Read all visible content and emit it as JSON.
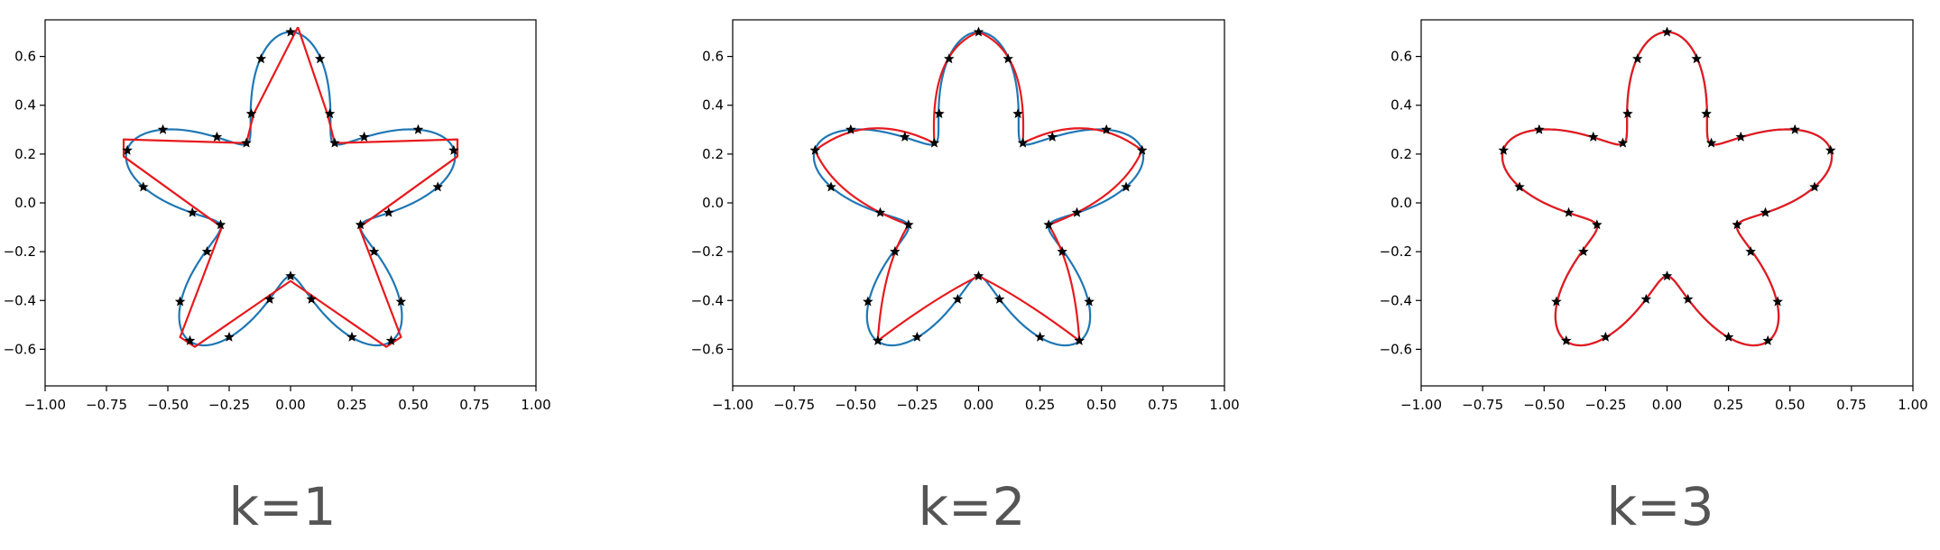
{
  "colors": {
    "true_curve": "#1f77b4",
    "spline_fit": "#e8191d",
    "markers": "#000000",
    "frame": "#000000",
    "caption": "#555555"
  },
  "chart_data": [
    {
      "type": "line",
      "caption": "k=1",
      "spline_degree": 1,
      "xlim": [
        -1.0,
        1.0
      ],
      "ylim": [
        -0.75,
        0.75
      ],
      "xticks": [
        -1.0,
        -0.75,
        -0.5,
        -0.25,
        0.0,
        0.25,
        0.5,
        0.75,
        1.0
      ],
      "xtick_labels": [
        "−1.00",
        "−0.75",
        "−0.50",
        "−0.25",
        "0.00",
        "0.25",
        "0.50",
        "0.75",
        "1.00"
      ],
      "yticks": [
        -0.6,
        -0.4,
        -0.2,
        0.0,
        0.2,
        0.4,
        0.6
      ],
      "ytick_labels": [
        "−0.6",
        "−0.4",
        "−0.2",
        "0.0",
        "0.2",
        "0.4",
        "0.6"
      ],
      "grid": false,
      "legend": "none",
      "curve": {
        "kind": "five-lobed star",
        "r_mean": 0.5,
        "r_amplitude": 0.2,
        "lobes": 5
      },
      "markers": [
        [
          0.0,
          0.7
        ],
        [
          -0.12,
          0.59
        ],
        [
          -0.16,
          0.365
        ],
        [
          -0.18,
          0.245
        ],
        [
          -0.3,
          0.27
        ],
        [
          -0.52,
          0.3
        ],
        [
          -0.665,
          0.215
        ],
        [
          -0.6,
          0.065
        ],
        [
          -0.4,
          -0.04
        ],
        [
          -0.285,
          -0.09
        ],
        [
          -0.34,
          -0.2
        ],
        [
          -0.45,
          -0.405
        ],
        [
          -0.41,
          -0.565
        ],
        [
          -0.25,
          -0.55
        ],
        [
          -0.085,
          -0.395
        ],
        [
          0.0,
          -0.3
        ],
        [
          0.085,
          -0.395
        ],
        [
          0.25,
          -0.55
        ],
        [
          0.41,
          -0.565
        ],
        [
          0.45,
          -0.405
        ],
        [
          0.34,
          -0.2
        ],
        [
          0.285,
          -0.09
        ],
        [
          0.4,
          -0.04
        ],
        [
          0.6,
          0.065
        ],
        [
          0.665,
          0.215
        ],
        [
          0.52,
          0.3
        ],
        [
          0.3,
          0.27
        ],
        [
          0.18,
          0.245
        ],
        [
          0.16,
          0.365
        ],
        [
          0.12,
          0.59
        ]
      ],
      "fit": [
        [
          0.03,
          0.72
        ],
        [
          -0.15,
          0.365
        ],
        [
          -0.18,
          0.245
        ],
        [
          -0.68,
          0.26
        ],
        [
          -0.68,
          0.19
        ],
        [
          -0.28,
          -0.1
        ],
        [
          -0.45,
          -0.55
        ],
        [
          -0.39,
          -0.59
        ],
        [
          0.0,
          -0.32
        ],
        [
          0.39,
          -0.59
        ],
        [
          0.45,
          -0.55
        ],
        [
          0.28,
          -0.1
        ],
        [
          0.68,
          0.19
        ],
        [
          0.68,
          0.26
        ],
        [
          0.18,
          0.245
        ],
        [
          0.15,
          0.365
        ],
        [
          0.03,
          0.72
        ]
      ]
    },
    {
      "type": "line",
      "caption": "k=2",
      "spline_degree": 2,
      "xlim": [
        -1.0,
        1.0
      ],
      "ylim": [
        -0.75,
        0.75
      ],
      "xticks": [
        -1.0,
        -0.75,
        -0.5,
        -0.25,
        0.0,
        0.25,
        0.5,
        0.75,
        1.0
      ],
      "xtick_labels": [
        "−1.00",
        "−0.75",
        "−0.50",
        "−0.25",
        "0.00",
        "0.25",
        "0.50",
        "0.75",
        "1.00"
      ],
      "yticks": [
        -0.6,
        -0.4,
        -0.2,
        0.0,
        0.2,
        0.4,
        0.6
      ],
      "ytick_labels": [
        "−0.6",
        "−0.4",
        "−0.2",
        "0.0",
        "0.2",
        "0.4",
        "0.6"
      ],
      "grid": false,
      "legend": "none",
      "curve": {
        "kind": "five-lobed star",
        "r_mean": 0.5,
        "r_amplitude": 0.2,
        "lobes": 5
      },
      "markers": [
        [
          0.0,
          0.7
        ],
        [
          -0.12,
          0.59
        ],
        [
          -0.16,
          0.365
        ],
        [
          -0.18,
          0.245
        ],
        [
          -0.3,
          0.27
        ],
        [
          -0.52,
          0.3
        ],
        [
          -0.665,
          0.215
        ],
        [
          -0.6,
          0.065
        ],
        [
          -0.4,
          -0.04
        ],
        [
          -0.285,
          -0.09
        ],
        [
          -0.34,
          -0.2
        ],
        [
          -0.45,
          -0.405
        ],
        [
          -0.41,
          -0.565
        ],
        [
          -0.25,
          -0.55
        ],
        [
          -0.085,
          -0.395
        ],
        [
          0.0,
          -0.3
        ],
        [
          0.085,
          -0.395
        ],
        [
          0.25,
          -0.55
        ],
        [
          0.41,
          -0.565
        ],
        [
          0.45,
          -0.405
        ],
        [
          0.34,
          -0.2
        ],
        [
          0.285,
          -0.09
        ],
        [
          0.4,
          -0.04
        ],
        [
          0.6,
          0.065
        ],
        [
          0.665,
          0.215
        ],
        [
          0.52,
          0.3
        ],
        [
          0.3,
          0.27
        ],
        [
          0.18,
          0.245
        ],
        [
          0.16,
          0.365
        ],
        [
          0.12,
          0.59
        ]
      ],
      "fit_anchors": [
        [
          0.0,
          0.7
        ],
        [
          -0.18,
          0.245
        ],
        [
          -0.665,
          0.215
        ],
        [
          -0.285,
          -0.09
        ],
        [
          -0.41,
          -0.565
        ],
        [
          0.0,
          -0.3
        ],
        [
          0.41,
          -0.565
        ],
        [
          0.285,
          -0.09
        ],
        [
          0.665,
          0.215
        ],
        [
          0.18,
          0.245
        ]
      ],
      "fit_controls": [
        [
          -0.2,
          0.62
        ],
        [
          -0.45,
          0.38
        ],
        [
          -0.58,
          0.02
        ],
        [
          -0.39,
          -0.26
        ],
        [
          -0.18,
          -0.39
        ],
        [
          0.18,
          -0.39
        ],
        [
          0.39,
          -0.26
        ],
        [
          0.58,
          0.02
        ],
        [
          0.45,
          0.38
        ],
        [
          0.2,
          0.62
        ]
      ]
    },
    {
      "type": "line",
      "caption": "k=3",
      "spline_degree": 3,
      "xlim": [
        -1.0,
        1.0
      ],
      "ylim": [
        -0.75,
        0.75
      ],
      "xticks": [
        -1.0,
        -0.75,
        -0.5,
        -0.25,
        0.0,
        0.25,
        0.5,
        0.75,
        1.0
      ],
      "xtick_labels": [
        "−1.00",
        "−0.75",
        "−0.50",
        "−0.25",
        "0.00",
        "0.25",
        "0.50",
        "0.75",
        "1.00"
      ],
      "yticks": [
        -0.6,
        -0.4,
        -0.2,
        0.0,
        0.2,
        0.4,
        0.6
      ],
      "ytick_labels": [
        "−0.6",
        "−0.4",
        "−0.2",
        "0.0",
        "0.2",
        "0.4",
        "0.6"
      ],
      "grid": false,
      "legend": "none",
      "curve": {
        "kind": "five-lobed star",
        "r_mean": 0.5,
        "r_amplitude": 0.2,
        "lobes": 5
      },
      "markers": [
        [
          0.0,
          0.7
        ],
        [
          -0.12,
          0.59
        ],
        [
          -0.16,
          0.365
        ],
        [
          -0.18,
          0.245
        ],
        [
          -0.3,
          0.27
        ],
        [
          -0.52,
          0.3
        ],
        [
          -0.665,
          0.215
        ],
        [
          -0.6,
          0.065
        ],
        [
          -0.4,
          -0.04
        ],
        [
          -0.285,
          -0.09
        ],
        [
          -0.34,
          -0.2
        ],
        [
          -0.45,
          -0.405
        ],
        [
          -0.41,
          -0.565
        ],
        [
          -0.25,
          -0.55
        ],
        [
          -0.085,
          -0.395
        ],
        [
          0.0,
          -0.3
        ],
        [
          0.085,
          -0.395
        ],
        [
          0.25,
          -0.55
        ],
        [
          0.41,
          -0.565
        ],
        [
          0.45,
          -0.405
        ],
        [
          0.34,
          -0.2
        ],
        [
          0.285,
          -0.09
        ],
        [
          0.4,
          -0.04
        ],
        [
          0.6,
          0.065
        ],
        [
          0.665,
          0.215
        ],
        [
          0.52,
          0.3
        ],
        [
          0.3,
          0.27
        ],
        [
          0.18,
          0.245
        ],
        [
          0.16,
          0.365
        ],
        [
          0.12,
          0.59
        ]
      ]
    }
  ]
}
